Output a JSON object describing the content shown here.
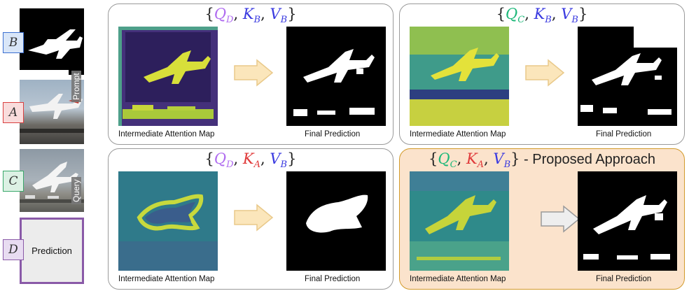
{
  "left": {
    "labels": {
      "b": "B",
      "a": "A",
      "c": "C",
      "d": "D"
    },
    "prompt_label": "Prompt",
    "query_label": "Query",
    "prediction_label": "Prediction"
  },
  "panels": [
    {
      "q": "Q",
      "q_sub": "D",
      "k": "K",
      "k_sub": "B",
      "v": "V",
      "v_sub": "B",
      "attn_caption": "Intermediate Attention Map",
      "pred_caption": "Final Prediction",
      "suffix": ""
    },
    {
      "q": "Q",
      "q_sub": "C",
      "k": "K",
      "k_sub": "B",
      "v": "V",
      "v_sub": "B",
      "attn_caption": "Intermediate Attention Map",
      "pred_caption": "Final Prediction",
      "suffix": ""
    },
    {
      "q": "Q",
      "q_sub": "D",
      "k": "K",
      "k_sub": "A",
      "v": "V",
      "v_sub": "B",
      "attn_caption": "Intermediate Attention Map",
      "pred_caption": "Final Prediction",
      "suffix": ""
    },
    {
      "q": "Q",
      "q_sub": "C",
      "k": "K",
      "k_sub": "A",
      "v": "V",
      "v_sub": "B",
      "attn_caption": "Intermediate Attention Map",
      "pred_caption": "Final Prediction",
      "suffix": " - Proposed Approach"
    }
  ],
  "colors": {
    "b_box": "#3b6fd1",
    "a_box": "#d94040",
    "c_box": "#3aa86a",
    "d_box": "#8a5aa8",
    "q_d": "#b06cf0",
    "q_c": "#1eb87a",
    "k_b": "#3a3ae0",
    "k_a": "#e03a3a",
    "v_b": "#3a3ae0",
    "arrow_fill": "#fbe6bb",
    "arrow_fill_gray": "#eeeeee"
  }
}
